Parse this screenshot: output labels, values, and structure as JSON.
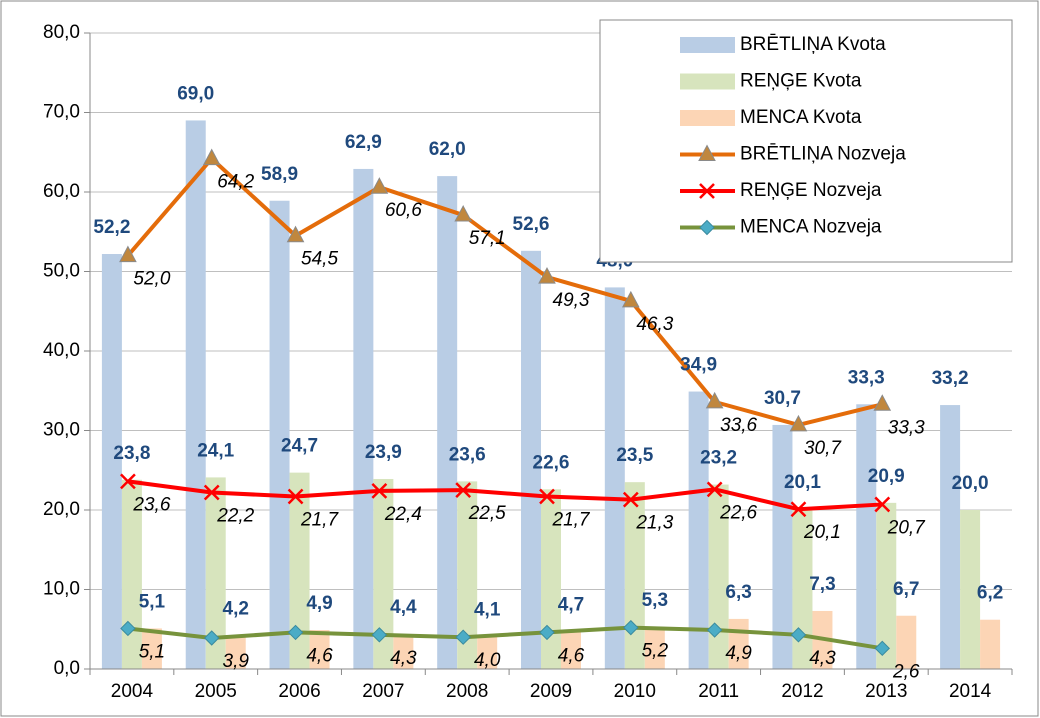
{
  "chart_data": {
    "type": "bar",
    "categories": [
      "2004",
      "2005",
      "2006",
      "2007",
      "2008",
      "2009",
      "2010",
      "2011",
      "2012",
      "2013",
      "2014"
    ],
    "ylim": [
      0,
      80
    ],
    "yticks": [
      {
        "value": 0,
        "label": "0,0"
      },
      {
        "value": 10,
        "label": "10,0"
      },
      {
        "value": 20,
        "label": "20,0"
      },
      {
        "value": 30,
        "label": "30,0"
      },
      {
        "value": 40,
        "label": "40,0"
      },
      {
        "value": 50,
        "label": "50,0"
      },
      {
        "value": 60,
        "label": "60,0"
      },
      {
        "value": 70,
        "label": "70,0"
      },
      {
        "value": 80,
        "label": "80,0"
      }
    ],
    "grid": true,
    "legend": "top-right",
    "series": [
      {
        "name": "BRĒTLIŅA Kvota",
        "type": "bar",
        "color": "#b9cde5",
        "values": [
          52.2,
          69.0,
          58.9,
          62.9,
          62.0,
          52.6,
          48.0,
          34.9,
          30.7,
          33.3,
          33.2
        ],
        "value_labels": [
          "52,2",
          "69,0",
          "58,9",
          "62,9",
          "62,0",
          "52,6",
          "48,0",
          "34,9",
          "30,7",
          "33,3",
          "33,2"
        ]
      },
      {
        "name": "REŅĢE Kvota",
        "type": "bar",
        "color": "#d7e4bd",
        "values": [
          23.8,
          24.1,
          24.7,
          23.9,
          23.6,
          22.6,
          23.5,
          23.2,
          20.1,
          20.9,
          20.0
        ],
        "value_labels": [
          "23,8",
          "24,1",
          "24,7",
          "23,9",
          "23,6",
          "22,6",
          "23,5",
          "23,2",
          "20,1",
          "20,9",
          "20,0"
        ]
      },
      {
        "name": "MENCA Kvota",
        "type": "bar",
        "color": "#fcd5b5",
        "values": [
          5.1,
          4.2,
          4.9,
          4.4,
          4.1,
          4.7,
          5.3,
          6.3,
          7.3,
          6.7,
          6.2
        ],
        "value_labels": [
          "5,1",
          "4,2",
          "4,9",
          "4,4",
          "4,1",
          "4,7",
          "5,3",
          "6,3",
          "7,3",
          "6,7",
          "6,2"
        ]
      },
      {
        "name": "BRĒTLIŅA Nozveja",
        "type": "line",
        "marker": "triangle",
        "color": "#e46c0a",
        "values": [
          52.0,
          64.2,
          54.5,
          60.6,
          57.1,
          49.3,
          46.3,
          33.6,
          30.7,
          33.3,
          null
        ],
        "value_labels": [
          "52,0",
          "64,2",
          "54,5",
          "60,6",
          "57,1",
          "49,3",
          "46,3",
          "33,6",
          "30,7",
          "33,3",
          null
        ]
      },
      {
        "name": "REŅĢE Nozveja",
        "type": "line",
        "marker": "x",
        "color": "#ff0000",
        "values": [
          23.6,
          22.2,
          21.7,
          22.4,
          22.5,
          21.7,
          21.3,
          22.6,
          20.1,
          20.7,
          null
        ],
        "value_labels": [
          "23,6",
          "22,2",
          "21,7",
          "22,4",
          "22,5",
          "21,7",
          "21,3",
          "22,6",
          "20,1",
          "20,7",
          null
        ]
      },
      {
        "name": "MENCA Nozveja",
        "type": "line",
        "marker": "diamond",
        "color": "#77933c",
        "values": [
          5.1,
          3.9,
          4.6,
          4.3,
          4.0,
          4.6,
          5.2,
          4.9,
          4.3,
          2.6,
          null
        ],
        "value_labels": [
          "5,1",
          "3,9",
          "4,6",
          "4,3",
          "4,0",
          "4,6",
          "5,2",
          "4,9",
          "4,3",
          "2,6",
          null
        ]
      }
    ]
  }
}
